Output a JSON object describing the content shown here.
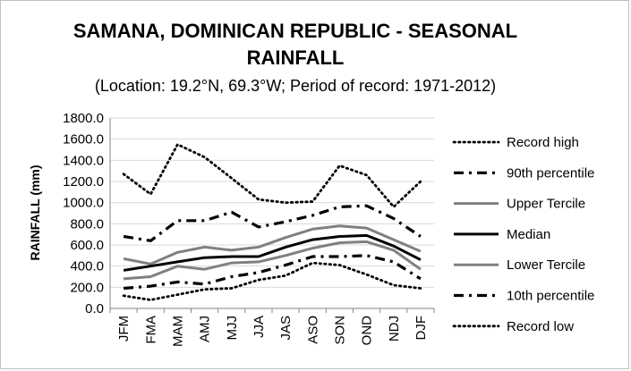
{
  "chart_data": {
    "type": "line",
    "title_lines": [
      "SAMANA, DOMINICAN REPUBLIC - SEASONAL",
      "RAINFALL"
    ],
    "subtitle": "(Location: 19.2°N, 69.3°W; Period of record: 1971-2012)",
    "ylabel": "RAINFALL (mm)",
    "xlabel": "",
    "ylim": [
      0,
      1800
    ],
    "ytick_step": 200,
    "ytick_labels": [
      "0.0",
      "200.0",
      "400.0",
      "600.0",
      "800.0",
      "1000.0",
      "1200.0",
      "1400.0",
      "1600.0",
      "1800.0"
    ],
    "grid": true,
    "legend_position": "right",
    "categories": [
      "JFM",
      "FMA",
      "MAM",
      "AMJ",
      "MJJ",
      "JJA",
      "JAS",
      "ASO",
      "SON",
      "OND",
      "NDJ",
      "DJF"
    ],
    "series": [
      {
        "name": "Record high",
        "style": "dotted",
        "color": "#000000",
        "values": [
          1270,
          1080,
          1550,
          1430,
          1230,
          1030,
          1000,
          1010,
          1350,
          1260,
          960,
          1200
        ]
      },
      {
        "name": "90th percentile",
        "style": "dashdot",
        "color": "#000000",
        "values": [
          680,
          640,
          830,
          830,
          910,
          770,
          820,
          880,
          960,
          970,
          850,
          680
        ]
      },
      {
        "name": "Upper Tercile",
        "style": "solid",
        "color": "#808080",
        "values": [
          470,
          420,
          530,
          580,
          550,
          580,
          670,
          750,
          780,
          760,
          650,
          540
        ]
      },
      {
        "name": "Median",
        "style": "solid",
        "color": "#000000",
        "values": [
          360,
          400,
          440,
          480,
          490,
          490,
          580,
          650,
          680,
          690,
          590,
          460
        ]
      },
      {
        "name": "Lower Tercile",
        "style": "solid",
        "color": "#808080",
        "values": [
          280,
          300,
          400,
          370,
          430,
          440,
          500,
          570,
          620,
          630,
          550,
          370
        ]
      },
      {
        "name": "10th percentile",
        "style": "dashdot",
        "color": "#000000",
        "values": [
          190,
          210,
          250,
          230,
          300,
          340,
          410,
          490,
          490,
          500,
          440,
          280
        ]
      },
      {
        "name": "Record low",
        "style": "dotted",
        "color": "#000000",
        "values": [
          120,
          80,
          130,
          180,
          190,
          270,
          310,
          430,
          410,
          320,
          220,
          190
        ]
      }
    ]
  }
}
